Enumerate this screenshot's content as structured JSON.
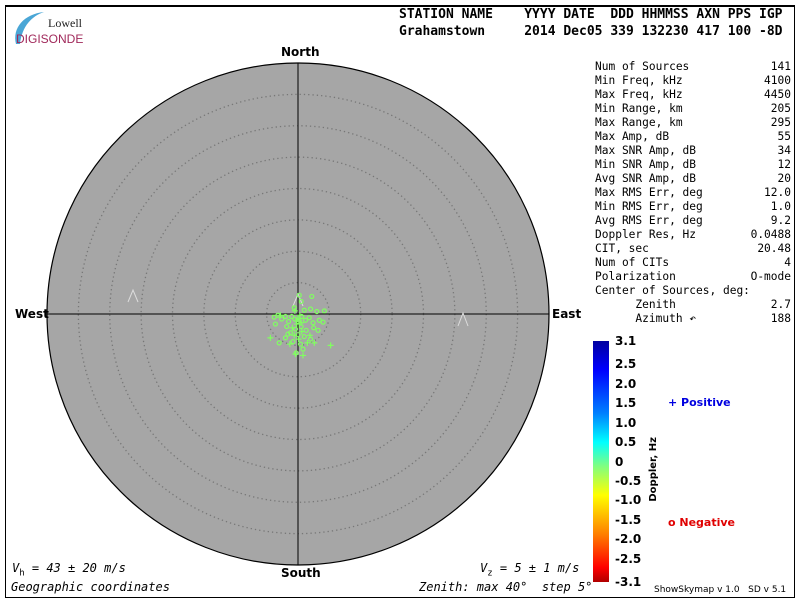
{
  "logo": {
    "line1": "Lowell",
    "line2": "DIGISONDE"
  },
  "header": {
    "labels": "STATION NAME    YYYY DATE  DDD HHMMSS AXN PPS IGP",
    "values": "Grahamstown     2014 Dec05 339 132230 417 100 -8D"
  },
  "stats": [
    {
      "label": "Num of Sources",
      "value": "141"
    },
    {
      "label": "Min Freq, kHz",
      "value": "4100"
    },
    {
      "label": "Max Freq, kHz",
      "value": "4450"
    },
    {
      "label": "Min Range, km",
      "value": "205"
    },
    {
      "label": "Max Range, km",
      "value": "295"
    },
    {
      "label": "Max Amp, dB",
      "value": "55"
    },
    {
      "label": "Max SNR Amp, dB",
      "value": "34"
    },
    {
      "label": "Min SNR Amp, dB",
      "value": "12"
    },
    {
      "label": "Avg SNR Amp, dB",
      "value": "20"
    },
    {
      "label": "Max RMS Err, deg",
      "value": "12.0"
    },
    {
      "label": "Min RMS Err, deg",
      "value": "1.0"
    },
    {
      "label": "Avg RMS Err, deg",
      "value": "9.2"
    },
    {
      "label": "Doppler Res, Hz",
      "value": "0.0488"
    },
    {
      "label": "CIT, sec",
      "value": "20.48"
    },
    {
      "label": "Num of CITs",
      "value": "4"
    },
    {
      "label": "Polarization",
      "value": "O-mode"
    },
    {
      "label": "Center of Sources, deg:",
      "value": ""
    },
    {
      "label": "      Zenith",
      "value": "2.7"
    },
    {
      "label": "      Azimuth ↶",
      "value": "188"
    }
  ],
  "chart_data": {
    "type": "scatter",
    "projection": "polar skymap",
    "directions": {
      "north": "North",
      "south": "South",
      "east": "East",
      "west": "West"
    },
    "zenith_max_deg": 40,
    "zenith_step_deg": 5,
    "background_color": "#a6a6a6",
    "point_color": "#80ff60",
    "points_east_north_deg": [
      [
        0.2,
        3.0,
        "o"
      ],
      [
        2.2,
        2.8,
        "o"
      ],
      [
        0.5,
        2.0,
        "o"
      ],
      [
        -0.6,
        1.0,
        "o"
      ],
      [
        1.0,
        0.6,
        "o"
      ],
      [
        2.0,
        0.8,
        "o"
      ],
      [
        3.0,
        0.4,
        "o"
      ],
      [
        4.2,
        0.5,
        "o"
      ],
      [
        -3.8,
        -0.5,
        "o"
      ],
      [
        -3.2,
        -0.2,
        "o"
      ],
      [
        -2.6,
        -0.8,
        "o"
      ],
      [
        -2.0,
        -0.4,
        "o"
      ],
      [
        -1.5,
        -1.2,
        "o"
      ],
      [
        -1.0,
        -0.4,
        "o"
      ],
      [
        -0.5,
        -0.8,
        "o"
      ],
      [
        0.0,
        -1.2,
        "o"
      ],
      [
        0.6,
        -0.4,
        "o"
      ],
      [
        1.2,
        -1.0,
        "o"
      ],
      [
        1.8,
        -0.6,
        "o"
      ],
      [
        2.4,
        -1.4,
        "o"
      ],
      [
        3.4,
        -1.0,
        "o"
      ],
      [
        4.0,
        -1.3,
        "o"
      ],
      [
        -3.6,
        -1.6,
        "o"
      ],
      [
        -1.8,
        -2.0,
        "o"
      ],
      [
        -0.4,
        -2.4,
        "o"
      ],
      [
        0.5,
        -2.0,
        "o"
      ],
      [
        1.3,
        -2.6,
        "o"
      ],
      [
        2.5,
        -2.2,
        "o"
      ],
      [
        3.2,
        -2.6,
        "o"
      ],
      [
        -1.2,
        -3.0,
        "o"
      ],
      [
        0.0,
        -3.3,
        "o"
      ],
      [
        1.0,
        -3.6,
        "o"
      ],
      [
        -2.0,
        -3.8,
        "o"
      ],
      [
        2.0,
        -4.0,
        "o"
      ],
      [
        -0.8,
        -4.4,
        "o"
      ],
      [
        0.4,
        -4.8,
        "o"
      ],
      [
        -0.3,
        -6.2,
        "o"
      ],
      [
        -1.6,
        -3.2,
        "o"
      ],
      [
        0.8,
        -5.6,
        "o"
      ],
      [
        -3.0,
        -4.6,
        "o"
      ],
      [
        -2.8,
        -0.2,
        "+"
      ],
      [
        -0.5,
        0.5,
        "+"
      ],
      [
        0.3,
        -0.2,
        "+"
      ],
      [
        -0.2,
        -1.6,
        "+"
      ],
      [
        0.6,
        -2.8,
        "+"
      ],
      [
        -0.9,
        -2.2,
        "+"
      ],
      [
        0.1,
        -4.0,
        "+"
      ],
      [
        1.5,
        -4.6,
        "+"
      ],
      [
        -1.3,
        -4.8,
        "+"
      ],
      [
        2.6,
        -4.6,
        "+"
      ],
      [
        -4.4,
        -3.8,
        "+"
      ],
      [
        5.2,
        -5.0,
        "+"
      ],
      [
        -0.4,
        -6.4,
        "+"
      ],
      [
        0.8,
        -6.6,
        "+"
      ],
      [
        0.0,
        -0.8,
        "+"
      ],
      [
        0.5,
        -1.4,
        "+"
      ],
      [
        -0.6,
        -3.4,
        "+"
      ],
      [
        1.9,
        -3.4,
        "+"
      ]
    ],
    "colorbar": {
      "label": "Doppler, Hz",
      "ticks": [
        "3.1",
        "2.5",
        "2.0",
        "1.5",
        "1.0",
        "0.5",
        "0",
        "-0.5",
        "-1.0",
        "-1.5",
        "-2.0",
        "-2.5",
        "-3.1"
      ],
      "range": [
        -3.1,
        3.1
      ]
    },
    "legend": {
      "positive": "Positive",
      "negative": "Negative",
      "positive_color": "#0000e0",
      "negative_color": "#e00000"
    }
  },
  "footer": {
    "vh_label": "V",
    "vh_sub": "h",
    "vh_value": " = 43 ± 20 m/s",
    "vz_label": "V",
    "vz_sub": "z",
    "vz_value": " = 5 ± 1 m/s",
    "coords": "Geographic coordinates",
    "zenith": "Zenith: max 40°  step 5°",
    "version": "ShowSkymap v 1.0   SD v 5.1"
  }
}
